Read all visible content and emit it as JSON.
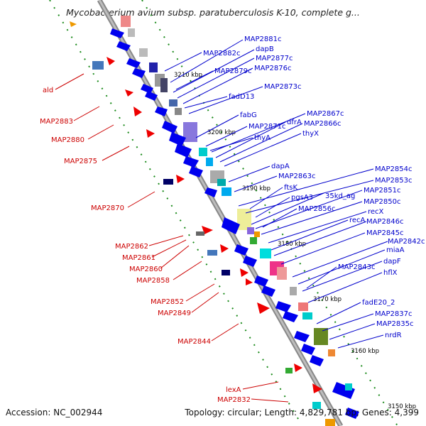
{
  "title": "Mycobacterium avium subsp. paratuberculosis K-10, complete g...",
  "footer": {
    "accession": "Accession: NC_002944",
    "stats": "Topology: circular; Length: 4,829,781 bp; Genes: 4,399"
  },
  "kbp_labels": [
    "3210 kbp",
    "3200 kbp",
    "3190 kbp",
    "3180 kbp",
    "3170 kbp",
    "3160 kbp",
    "3150 kbp"
  ],
  "left_genes": [
    "ald",
    "MAP2883",
    "MAP2880",
    "MAP2875",
    "MAP2870",
    "MAP2862",
    "MAP2861",
    "MAP2860",
    "MAP2858",
    "MAP2852",
    "MAP2849",
    "MAP2844",
    "lexA",
    "MAP2832"
  ],
  "right_genes": [
    "MAP2881c",
    "dapB",
    "MAP2882c",
    "MAP2877c",
    "MAP2879c",
    "MAP2876c",
    "MAP2873c",
    "fadD13",
    "fabG",
    "MAP2867c",
    "dfrA",
    "MAP2866c",
    "MAP2871c",
    "thyX",
    "thyA",
    "dapA",
    "MAP2854c",
    "MAP2863c",
    "MAP2853c",
    "ftsK",
    "35kd_ag",
    "MAP2851c",
    "pgsA3",
    "MAP2850c",
    "MAP2856c",
    "recX",
    "recA",
    "MAP2846c",
    "MAP2845c",
    "MAP2842c",
    "miaA",
    "dapF",
    "MAP2843c",
    "hflX",
    "fadE20_2",
    "MAP2837c",
    "MAP2835c",
    "nrdR"
  ]
}
